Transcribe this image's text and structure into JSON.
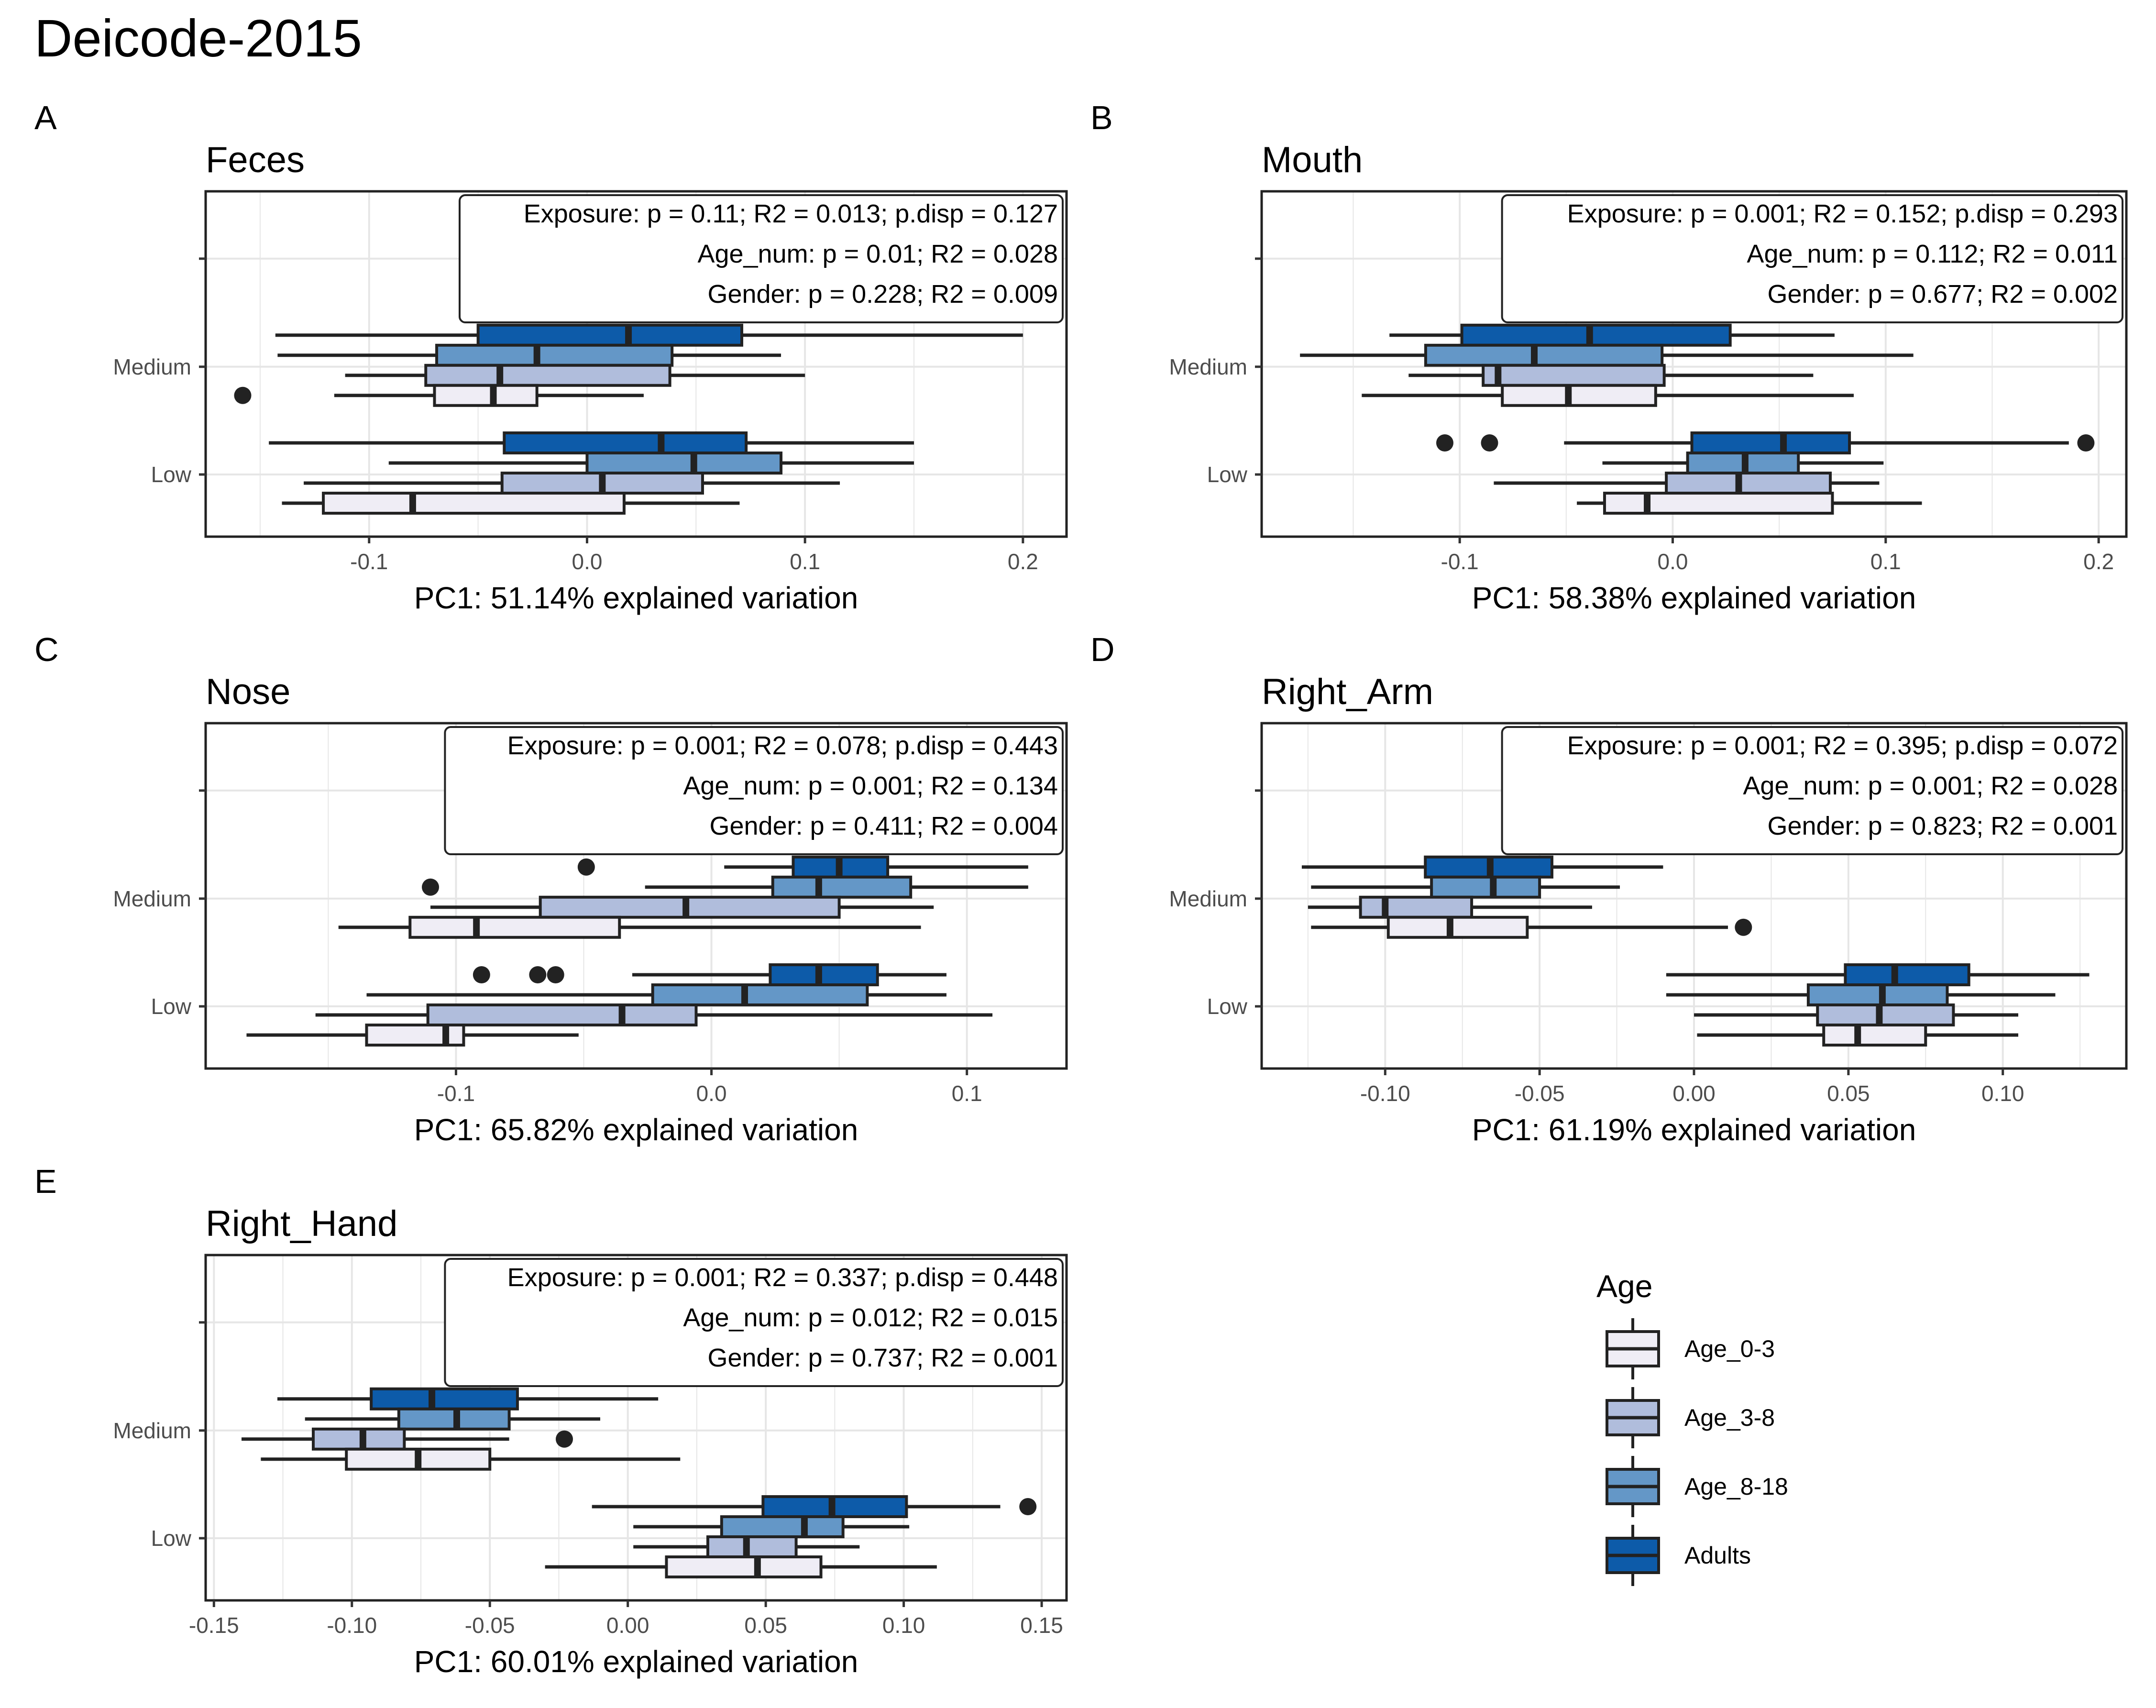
{
  "figure_title": "Deicode-2015",
  "legend": {
    "title": "Age",
    "items": [
      {
        "label": "Age_0-3",
        "color": "#EFEDF5"
      },
      {
        "label": "Age_3-8",
        "color": "#B0BDDC"
      },
      {
        "label": "Age_8-18",
        "color": "#6497C7"
      },
      {
        "label": "Adults",
        "color": "#0D5BA9"
      }
    ]
  },
  "chart_data": [
    {
      "type": "boxplot",
      "letter": "A",
      "title": "Feces",
      "xlabel": "PC1: 51.14% explained variation",
      "ylabel": "",
      "xlim": [
        -0.175,
        0.22
      ],
      "xticks": [
        -0.1,
        0.0,
        0.1,
        0.2
      ],
      "tick_labels": [
        "-0.1",
        "0.0",
        "0.1",
        "0.2"
      ],
      "categories": [
        "Medium",
        "Low"
      ],
      "grid": true,
      "stats": [
        "Exposure: p = 0.11; R2 = 0.013; p.disp = 0.127",
        "Age_num: p = 0.01; R2 = 0.028",
        "Gender: p = 0.228; R2 = 0.009"
      ],
      "boxes": [
        {
          "category": "Medium",
          "group": "Adults",
          "whisker_low": -0.143,
          "q1": -0.05,
          "median": 0.019,
          "q3": 0.071,
          "whisker_high": 0.2
        },
        {
          "category": "Medium",
          "group": "Age_8-18",
          "whisker_low": -0.142,
          "q1": -0.069,
          "median": -0.023,
          "q3": 0.039,
          "whisker_high": 0.089
        },
        {
          "category": "Medium",
          "group": "Age_3-8",
          "whisker_low": -0.111,
          "q1": -0.074,
          "median": -0.04,
          "q3": 0.038,
          "whisker_high": 0.1
        },
        {
          "category": "Medium",
          "group": "Age_0-3",
          "whisker_low": -0.116,
          "q1": -0.07,
          "median": -0.043,
          "q3": -0.023,
          "whisker_high": 0.026,
          "outliers": [
            -0.158
          ]
        },
        {
          "category": "Low",
          "group": "Adults",
          "whisker_low": -0.146,
          "q1": -0.038,
          "median": 0.034,
          "q3": 0.073,
          "whisker_high": 0.15
        },
        {
          "category": "Low",
          "group": "Age_8-18",
          "whisker_low": -0.091,
          "q1": 0.0,
          "median": 0.049,
          "q3": 0.089,
          "whisker_high": 0.15
        },
        {
          "category": "Low",
          "group": "Age_3-8",
          "whisker_low": -0.13,
          "q1": -0.039,
          "median": 0.007,
          "q3": 0.053,
          "whisker_high": 0.116
        },
        {
          "category": "Low",
          "group": "Age_0-3",
          "whisker_low": -0.14,
          "q1": -0.121,
          "median": -0.08,
          "q3": 0.017,
          "whisker_high": 0.07
        }
      ]
    },
    {
      "type": "boxplot",
      "letter": "B",
      "title": "Mouth",
      "xlabel": "PC1: 58.38% explained variation",
      "ylabel": "",
      "xlim": [
        -0.193,
        0.213
      ],
      "xticks": [
        -0.1,
        0.0,
        0.1,
        0.2
      ],
      "tick_labels": [
        "-0.1",
        "0.0",
        "0.1",
        "0.2"
      ],
      "categories": [
        "Medium",
        "Low"
      ],
      "grid": true,
      "stats": [
        "Exposure: p = 0.001; R2 = 0.152; p.disp = 0.293",
        "Age_num: p = 0.112; R2 = 0.011",
        "Gender: p = 0.677; R2 = 0.002"
      ],
      "boxes": [
        {
          "category": "Medium",
          "group": "Adults",
          "whisker_low": -0.133,
          "q1": -0.099,
          "median": -0.039,
          "q3": 0.027,
          "whisker_high": 0.076
        },
        {
          "category": "Medium",
          "group": "Age_8-18",
          "whisker_low": -0.175,
          "q1": -0.116,
          "median": -0.065,
          "q3": -0.005,
          "whisker_high": 0.113
        },
        {
          "category": "Medium",
          "group": "Age_3-8",
          "whisker_low": -0.124,
          "q1": -0.089,
          "median": -0.082,
          "q3": -0.004,
          "whisker_high": 0.066
        },
        {
          "category": "Medium",
          "group": "Age_0-3",
          "whisker_low": -0.146,
          "q1": -0.08,
          "median": -0.049,
          "q3": -0.008,
          "whisker_high": 0.085
        },
        {
          "category": "Low",
          "group": "Adults",
          "whisker_low": -0.051,
          "q1": 0.009,
          "median": 0.052,
          "q3": 0.083,
          "whisker_high": 0.186,
          "outliers": [
            -0.107,
            -0.086,
            0.194
          ]
        },
        {
          "category": "Low",
          "group": "Age_8-18",
          "whisker_low": -0.033,
          "q1": 0.007,
          "median": 0.034,
          "q3": 0.059,
          "whisker_high": 0.099
        },
        {
          "category": "Low",
          "group": "Age_3-8",
          "whisker_low": -0.084,
          "q1": -0.003,
          "median": 0.031,
          "q3": 0.074,
          "whisker_high": 0.097
        },
        {
          "category": "Low",
          "group": "Age_0-3",
          "whisker_low": -0.045,
          "q1": -0.032,
          "median": -0.012,
          "q3": 0.075,
          "whisker_high": 0.117
        }
      ]
    },
    {
      "type": "boxplot",
      "letter": "C",
      "title": "Nose",
      "xlabel": "PC1: 65.82% explained variation",
      "ylabel": "",
      "xlim": [
        -0.198,
        0.139
      ],
      "xticks": [
        -0.1,
        0.0,
        0.1
      ],
      "tick_labels": [
        "-0.1",
        "0.0",
        "0.1"
      ],
      "categories": [
        "Medium",
        "Low"
      ],
      "grid": true,
      "stats": [
        "Exposure: p = 0.001; R2 = 0.078; p.disp = 0.443",
        "Age_num: p = 0.001; R2 = 0.134",
        "Gender: p = 0.411; R2 = 0.004"
      ],
      "boxes": [
        {
          "category": "Medium",
          "group": "Adults",
          "whisker_low": 0.005,
          "q1": 0.032,
          "median": 0.05,
          "q3": 0.069,
          "whisker_high": 0.124,
          "outliers": [
            -0.049
          ]
        },
        {
          "category": "Medium",
          "group": "Age_8-18",
          "whisker_low": -0.026,
          "q1": 0.024,
          "median": 0.042,
          "q3": 0.078,
          "whisker_high": 0.124,
          "outliers": [
            -0.11
          ]
        },
        {
          "category": "Medium",
          "group": "Age_3-8",
          "whisker_low": -0.11,
          "q1": -0.067,
          "median": -0.01,
          "q3": 0.05,
          "whisker_high": 0.087
        },
        {
          "category": "Medium",
          "group": "Age_0-3",
          "whisker_low": -0.146,
          "q1": -0.118,
          "median": -0.092,
          "q3": -0.036,
          "whisker_high": 0.082
        },
        {
          "category": "Low",
          "group": "Adults",
          "whisker_low": -0.031,
          "q1": 0.023,
          "median": 0.042,
          "q3": 0.065,
          "whisker_high": 0.092,
          "outliers": [
            -0.09,
            -0.068,
            -0.061
          ]
        },
        {
          "category": "Low",
          "group": "Age_8-18",
          "whisker_low": -0.135,
          "q1": -0.023,
          "median": 0.013,
          "q3": 0.061,
          "whisker_high": 0.092
        },
        {
          "category": "Low",
          "group": "Age_3-8",
          "whisker_low": -0.155,
          "q1": -0.111,
          "median": -0.035,
          "q3": -0.006,
          "whisker_high": 0.11
        },
        {
          "category": "Low",
          "group": "Age_0-3",
          "whisker_low": -0.182,
          "q1": -0.135,
          "median": -0.104,
          "q3": -0.097,
          "whisker_high": -0.052
        }
      ]
    },
    {
      "type": "boxplot",
      "letter": "D",
      "title": "Right_Arm",
      "xlabel": "PC1: 61.19% explained variation",
      "ylabel": "",
      "xlim": [
        -0.14,
        0.14
      ],
      "xticks": [
        -0.1,
        -0.05,
        0.0,
        0.05,
        0.1
      ],
      "tick_labels": [
        "-0.10",
        "-0.05",
        "0.00",
        "0.05",
        "0.10"
      ],
      "categories": [
        "Medium",
        "Low"
      ],
      "grid": true,
      "stats": [
        "Exposure: p = 0.001; R2 = 0.395; p.disp = 0.072",
        "Age_num: p = 0.001; R2 = 0.028",
        "Gender: p = 0.823; R2 = 0.001"
      ],
      "boxes": [
        {
          "category": "Medium",
          "group": "Adults",
          "whisker_low": -0.127,
          "q1": -0.087,
          "median": -0.066,
          "q3": -0.046,
          "whisker_high": -0.01
        },
        {
          "category": "Medium",
          "group": "Age_8-18",
          "whisker_low": -0.124,
          "q1": -0.085,
          "median": -0.065,
          "q3": -0.05,
          "whisker_high": -0.024
        },
        {
          "category": "Medium",
          "group": "Age_3-8",
          "whisker_low": -0.125,
          "q1": -0.108,
          "median": -0.1,
          "q3": -0.072,
          "whisker_high": -0.033
        },
        {
          "category": "Medium",
          "group": "Age_0-3",
          "whisker_low": -0.124,
          "q1": -0.099,
          "median": -0.079,
          "q3": -0.054,
          "whisker_high": 0.011,
          "outliers": [
            0.016
          ]
        },
        {
          "category": "Low",
          "group": "Adults",
          "whisker_low": -0.009,
          "q1": 0.049,
          "median": 0.065,
          "q3": 0.089,
          "whisker_high": 0.128
        },
        {
          "category": "Low",
          "group": "Age_8-18",
          "whisker_low": -0.009,
          "q1": 0.037,
          "median": 0.061,
          "q3": 0.082,
          "whisker_high": 0.117
        },
        {
          "category": "Low",
          "group": "Age_3-8",
          "whisker_low": 0.0,
          "q1": 0.04,
          "median": 0.06,
          "q3": 0.084,
          "whisker_high": 0.105
        },
        {
          "category": "Low",
          "group": "Age_0-3",
          "whisker_low": 0.001,
          "q1": 0.042,
          "median": 0.053,
          "q3": 0.075,
          "whisker_high": 0.105
        }
      ]
    },
    {
      "type": "boxplot",
      "letter": "E",
      "title": "Right_Hand",
      "xlabel": "PC1: 60.01% explained variation",
      "ylabel": "",
      "xlim": [
        -0.153,
        0.159
      ],
      "xticks": [
        -0.15,
        -0.1,
        -0.05,
        0.0,
        0.05,
        0.1,
        0.15
      ],
      "tick_labels": [
        "-0.15",
        "-0.10",
        "-0.05",
        "0.00",
        "0.05",
        "0.10",
        "0.15"
      ],
      "categories": [
        "Medium",
        "Low"
      ],
      "grid": true,
      "stats": [
        "Exposure: p = 0.001; R2 = 0.337; p.disp = 0.448",
        "Age_num: p = 0.012; R2 = 0.015",
        "Gender: p = 0.737; R2 = 0.001"
      ],
      "boxes": [
        {
          "category": "Medium",
          "group": "Adults",
          "whisker_low": -0.127,
          "q1": -0.093,
          "median": -0.071,
          "q3": -0.04,
          "whisker_high": 0.011
        },
        {
          "category": "Medium",
          "group": "Age_8-18",
          "whisker_low": -0.117,
          "q1": -0.083,
          "median": -0.062,
          "q3": -0.043,
          "whisker_high": -0.01
        },
        {
          "category": "Medium",
          "group": "Age_3-8",
          "whisker_low": -0.14,
          "q1": -0.114,
          "median": -0.096,
          "q3": -0.081,
          "whisker_high": -0.043,
          "outliers": [
            -0.023
          ]
        },
        {
          "category": "Medium",
          "group": "Age_0-3",
          "whisker_low": -0.133,
          "q1": -0.102,
          "median": -0.076,
          "q3": -0.05,
          "whisker_high": 0.019
        },
        {
          "category": "Low",
          "group": "Adults",
          "whisker_low": -0.013,
          "q1": 0.049,
          "median": 0.074,
          "q3": 0.101,
          "whisker_high": 0.135,
          "outliers": [
            0.145
          ]
        },
        {
          "category": "Low",
          "group": "Age_8-18",
          "whisker_low": 0.002,
          "q1": 0.034,
          "median": 0.064,
          "q3": 0.078,
          "whisker_high": 0.102
        },
        {
          "category": "Low",
          "group": "Age_3-8",
          "whisker_low": 0.002,
          "q1": 0.029,
          "median": 0.043,
          "q3": 0.061,
          "whisker_high": 0.084
        },
        {
          "category": "Low",
          "group": "Age_0-3",
          "whisker_low": -0.03,
          "q1": 0.014,
          "median": 0.047,
          "q3": 0.07,
          "whisker_high": 0.112
        }
      ]
    }
  ]
}
